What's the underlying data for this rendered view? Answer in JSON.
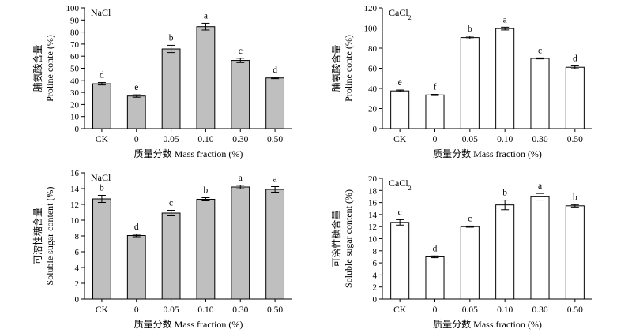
{
  "xlabel": "质量分数 Mass fraction (%)",
  "chart_data": [
    {
      "type": "bar",
      "title": "NaCl",
      "ylabel_cn": "脯氨酸含量",
      "ylabel_en": "Proline conte (%)",
      "ylim": [
        0,
        100
      ],
      "ytick_step": 10,
      "categories": [
        "CK",
        "0",
        "0.05",
        "0.10",
        "0.30",
        "0.50"
      ],
      "values": [
        37.2,
        27.0,
        66.0,
        84.5,
        56.5,
        42.0
      ],
      "errors": [
        1.0,
        1.0,
        3.0,
        2.8,
        1.8,
        0.6
      ],
      "labels": [
        "d",
        "e",
        "b",
        "a",
        "c",
        "d"
      ],
      "fill": "#bfbfbf"
    },
    {
      "type": "bar",
      "title": "CaCl2",
      "ylabel_cn": "脯氨酸含量",
      "ylabel_en": "Proline conte (%)",
      "ylim": [
        0,
        120
      ],
      "ytick_step": 20,
      "categories": [
        "CK",
        "0",
        "0.05",
        "0.10",
        "0.30",
        "0.50"
      ],
      "values": [
        37.5,
        33.5,
        90.5,
        99.5,
        69.8,
        61.0
      ],
      "errors": [
        0.9,
        0.6,
        1.3,
        1.4,
        0.5,
        1.4
      ],
      "labels": [
        "e",
        "f",
        "b",
        "a",
        "c",
        "d"
      ],
      "fill": "#ffffff"
    },
    {
      "type": "bar",
      "title": "NaCl",
      "ylabel_cn": "可溶性糖含量",
      "ylabel_en": "Soluble sugar content (%)",
      "ylim": [
        0,
        16
      ],
      "ytick_step": 2,
      "categories": [
        "CK",
        "0",
        "0.05",
        "0.10",
        "0.30",
        "0.50"
      ],
      "values": [
        12.7,
        8.05,
        10.9,
        12.65,
        14.2,
        13.9
      ],
      "errors": [
        0.45,
        0.15,
        0.35,
        0.2,
        0.22,
        0.35
      ],
      "labels": [
        "b",
        "d",
        "c",
        "b",
        "a",
        "a"
      ],
      "fill": "#bfbfbf"
    },
    {
      "type": "bar",
      "title": "CaCl2",
      "ylabel_cn": "可溶性糖含量",
      "ylabel_en": "Soluble sugar content (%)",
      "ylim": [
        0,
        20
      ],
      "ytick_step": 2,
      "categories": [
        "CK",
        "0",
        "0.05",
        "0.10",
        "0.30",
        "0.50"
      ],
      "values": [
        12.7,
        7.0,
        12.0,
        15.6,
        16.95,
        15.45
      ],
      "errors": [
        0.45,
        0.15,
        0.1,
        0.8,
        0.55,
        0.2
      ],
      "labels": [
        "c",
        "d",
        "c",
        "b",
        "a",
        "b"
      ],
      "fill": "#ffffff"
    }
  ]
}
